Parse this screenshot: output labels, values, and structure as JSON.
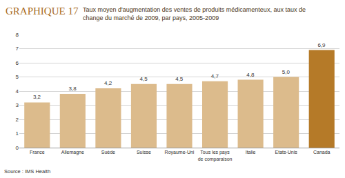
{
  "chart_data": {
    "type": "bar",
    "title": "GRAPHIQUE 17",
    "subtitle": "Taux moyen d'augmentation des ventes de produits médicamenteux, aux taux de change du marché de 2009, par pays, 2005-2009",
    "categories": [
      "France",
      "Allemagne",
      "Suède",
      "Suisse",
      "Royaume-Uni",
      "Tous les pays de comparaison",
      "Italie",
      "Etats-Unis",
      "Canada"
    ],
    "values": [
      3.2,
      3.8,
      4.2,
      4.5,
      4.5,
      4.7,
      4.8,
      5.0,
      6.9
    ],
    "value_labels": [
      "3,2",
      "3,8",
      "4,2",
      "4,5",
      "4,5",
      "4,7",
      "4,8",
      "5,0",
      "6,9"
    ],
    "colors": [
      "#dcbb8c",
      "#dcbb8c",
      "#dcbb8c",
      "#dcbb8c",
      "#dcbb8c",
      "#dcbb8c",
      "#dcbb8c",
      "#dcbb8c",
      "#b57a28"
    ],
    "data_labels": true,
    "ylim": [
      0,
      8
    ],
    "yticks": [
      0,
      1,
      2,
      3,
      4,
      5,
      6,
      7,
      8
    ],
    "grid": true,
    "annotations": [
      "Source : IMS Health"
    ]
  }
}
